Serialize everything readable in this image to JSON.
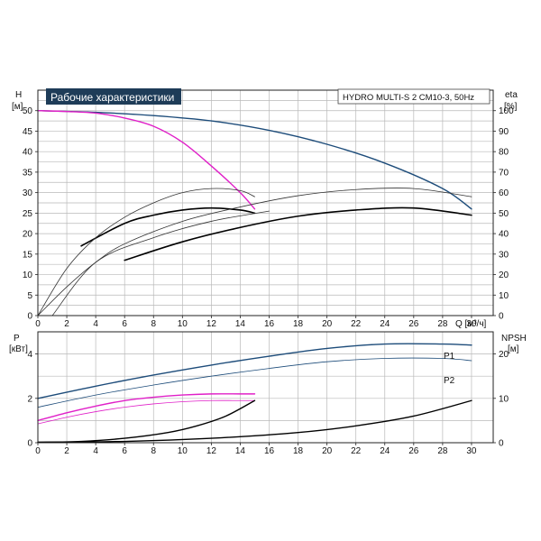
{
  "chart_data": [
    {
      "type": "line",
      "title": "Рабочие характеристики",
      "subtitle": "HYDRO MULTI-S 2 CM10-3, 50Hz",
      "xlabel": "Q [м³/ч]",
      "ylabel_left": "H\n[м]",
      "ylabel_right": "eta\n[%]",
      "xlim": [
        0,
        31.5
      ],
      "ylim_left": [
        0,
        55
      ],
      "ylim_right": [
        0,
        110
      ],
      "x_ticks": [
        "0",
        "2",
        "4",
        "6",
        "8",
        "10",
        "12",
        "14",
        "16",
        "18",
        "20",
        "22",
        "24",
        "26",
        "28",
        "30"
      ],
      "y_ticks_left": [
        "0",
        "5",
        "10",
        "15",
        "20",
        "25",
        "30",
        "35",
        "40",
        "45",
        "50"
      ],
      "y_ticks_right": [
        "0",
        "10",
        "20",
        "30",
        "40",
        "50",
        "60",
        "70",
        "80",
        "90",
        "100"
      ],
      "grid": true,
      "series": [
        {
          "role": "H, 2 pumps",
          "axis": "left",
          "color": "#1d4c7a",
          "width": 1.4,
          "x": [
            0,
            4,
            8,
            12,
            16,
            20,
            24,
            28,
            30
          ],
          "y": [
            50,
            49.6,
            48.8,
            47.5,
            45.2,
            41.8,
            37.2,
            31,
            26
          ]
        },
        {
          "role": "H, 1 pump",
          "axis": "left",
          "color": "#e020c8",
          "width": 1.4,
          "x": [
            0,
            2,
            4,
            6,
            8,
            10,
            12,
            14,
            15
          ],
          "y": [
            50,
            49.8,
            49.4,
            48.2,
            46.2,
            42.3,
            36.5,
            30,
            26
          ]
        },
        {
          "role": "eta, 1 pump",
          "axis": "right",
          "color": "#000000",
          "width": 1.6,
          "x": [
            3,
            6,
            8,
            10,
            12,
            14,
            15
          ],
          "y": [
            34,
            45,
            49,
            51.5,
            52.5,
            51.5,
            50
          ]
        },
        {
          "role": "eta, 1 pump, thin",
          "axis": "right",
          "color": "#333333",
          "width": 0.8,
          "x": [
            0,
            2,
            4,
            6,
            8,
            10,
            12,
            14,
            15
          ],
          "y": [
            0,
            23,
            38,
            48,
            55,
            60,
            62,
            61,
            58
          ]
        },
        {
          "role": "eta, 2 pumps",
          "axis": "right",
          "color": "#000000",
          "width": 1.6,
          "x": [
            6,
            10,
            14,
            18,
            22,
            26,
            30
          ],
          "y": [
            27,
            36,
            43,
            48.5,
            51.5,
            52.5,
            49
          ]
        },
        {
          "role": "eta, 2 pumps, thin",
          "axis": "right",
          "color": "#333333",
          "width": 0.8,
          "x": [
            0,
            2,
            4,
            6,
            10,
            14,
            18,
            22,
            26,
            30
          ],
          "y": [
            0,
            14,
            26,
            35,
            46,
            53,
            58.5,
            61.5,
            62,
            58
          ]
        },
        {
          "role": "eta, thin, lower",
          "axis": "right",
          "color": "#333333",
          "width": 0.8,
          "x": [
            1,
            4,
            8,
            12,
            16
          ],
          "y": [
            0,
            26,
            38,
            46,
            51
          ]
        }
      ]
    },
    {
      "type": "line",
      "xlim": [
        0,
        31.5
      ],
      "ylabel_left": "P\n[кВт]",
      "ylabel_right": "NPSH\n[м]",
      "ylim_left": [
        0,
        5
      ],
      "ylim_right": [
        0,
        25
      ],
      "y_ticks_left": [
        "0",
        "2",
        "4"
      ],
      "y_ticks_right": [
        "0",
        "10",
        "20"
      ],
      "x_ticks": [
        "0",
        "2",
        "4",
        "6",
        "8",
        "10",
        "12",
        "14",
        "16",
        "18",
        "20",
        "22",
        "24",
        "26",
        "28",
        "30"
      ],
      "grid": true,
      "series": [
        {
          "name": "P1",
          "axis": "left",
          "color": "#1d4c7a",
          "width": 1.4,
          "x": [
            0,
            4,
            8,
            12,
            16,
            20,
            24,
            28,
            30
          ],
          "y": [
            2.0,
            2.55,
            3.05,
            3.5,
            3.9,
            4.25,
            4.45,
            4.45,
            4.4
          ]
        },
        {
          "name": "P2",
          "axis": "left",
          "color": "#1d4c7a",
          "width": 0.8,
          "x": [
            0,
            4,
            8,
            12,
            16,
            20,
            24,
            28,
            30
          ],
          "y": [
            1.6,
            2.15,
            2.6,
            3.0,
            3.35,
            3.65,
            3.8,
            3.8,
            3.7
          ]
        },
        {
          "role": "P1, 1 pump",
          "axis": "left",
          "color": "#e020c8",
          "width": 1.4,
          "x": [
            0,
            2,
            4,
            6,
            8,
            10,
            12,
            14,
            15
          ],
          "y": [
            1.0,
            1.35,
            1.65,
            1.9,
            2.05,
            2.15,
            2.2,
            2.2,
            2.2
          ]
        },
        {
          "role": "P2, 1 pump",
          "axis": "left",
          "color": "#e020c8",
          "width": 0.8,
          "x": [
            0,
            2,
            4,
            6,
            8,
            10,
            12,
            14,
            15
          ],
          "y": [
            0.85,
            1.15,
            1.4,
            1.6,
            1.75,
            1.85,
            1.9,
            1.9,
            1.9
          ]
        },
        {
          "role": "NPSH, 1 pump",
          "axis": "right",
          "color": "#000000",
          "width": 1.4,
          "x": [
            0,
            3,
            6,
            9,
            11,
            13,
            15
          ],
          "y": [
            0.1,
            0.3,
            1.0,
            2.3,
            3.8,
            6.0,
            9.5
          ]
        },
        {
          "role": "NPSH, 2 pumps",
          "axis": "right",
          "color": "#000000",
          "width": 1.4,
          "x": [
            0,
            6,
            12,
            18,
            22,
            26,
            30
          ],
          "y": [
            0.1,
            0.3,
            1.0,
            2.3,
            3.8,
            6.0,
            9.5
          ]
        }
      ]
    }
  ],
  "x_ticks_lower": [
    "0",
    "2",
    "4",
    "6",
    "8",
    "10",
    "12",
    "14",
    "16",
    "18",
    "20",
    "22",
    "24",
    "26",
    "28",
    "30"
  ]
}
